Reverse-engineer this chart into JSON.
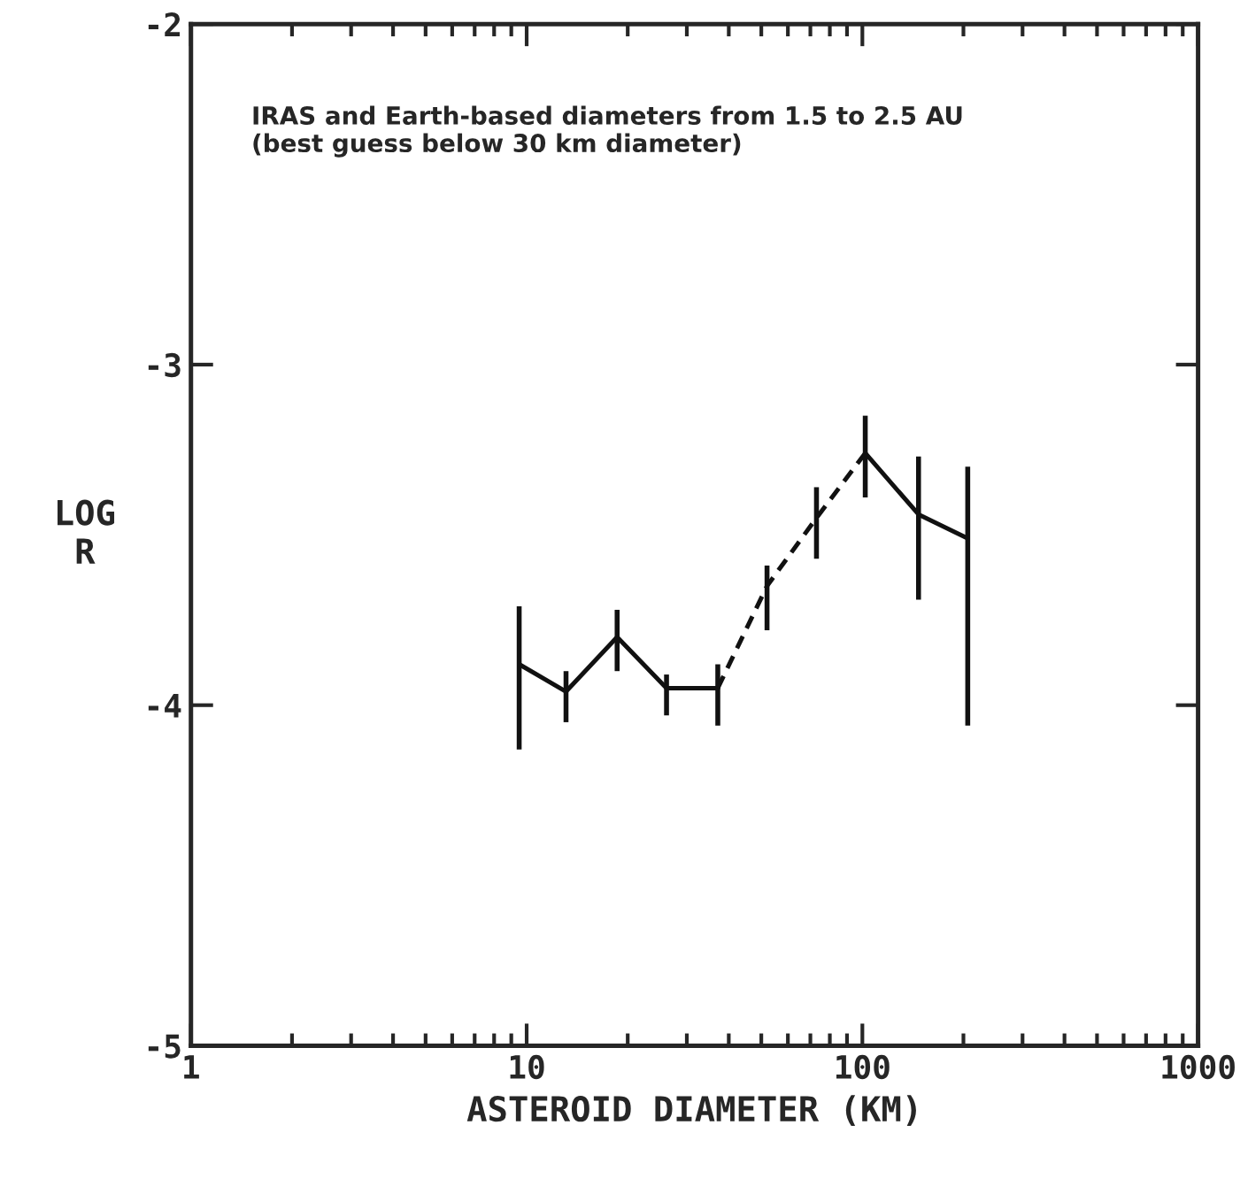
{
  "chart_data": {
    "type": "line",
    "xlabel": "ASTEROID DIAMETER (KM)",
    "ylabel": "LOG\nR",
    "annotations": [
      "IRAS and Earth-based diameters from 1.5 to 2.5 AU\n(best guess below 30 km diameter)"
    ],
    "log": "x",
    "xlim": [
      1,
      1000
    ],
    "xticks": [
      1,
      10,
      100,
      1000
    ],
    "ylim": [
      -5,
      -2
    ],
    "yticks": [
      -5,
      -4,
      -3,
      -2
    ],
    "grid": false,
    "legend": false,
    "marker": "none",
    "series": [
      {
        "color": "#111111",
        "line_style": "solid",
        "x": [
          9.5,
          13.1,
          18.6,
          26.1,
          37.1
        ],
        "values": [
          -3.88,
          -3.96,
          -3.8,
          -3.95,
          -3.95
        ],
        "errors": [
          [
            -4.13,
            -3.71
          ],
          [
            -4.05,
            -3.9
          ],
          [
            -3.9,
            -3.72
          ],
          [
            -4.03,
            -3.91
          ],
          [
            -4.06,
            -3.88
          ]
        ]
      },
      {
        "color": "#111111",
        "line_style": "dashed",
        "x": [
          37.1,
          52,
          73,
          102
        ],
        "values": [
          -3.95,
          -3.65,
          -3.45,
          -3.26
        ],
        "errors": [
          null,
          [
            -3.78,
            -3.59
          ],
          [
            -3.57,
            -3.36
          ],
          null
        ]
      },
      {
        "color": "#111111",
        "line_style": "solid",
        "x": [
          102,
          147,
          206
        ],
        "values": [
          -3.26,
          -3.44,
          -3.51
        ],
        "errors": [
          [
            -3.39,
            -3.15
          ],
          [
            -3.69,
            -3.27
          ],
          [
            -4.06,
            -3.3
          ]
        ]
      }
    ]
  }
}
